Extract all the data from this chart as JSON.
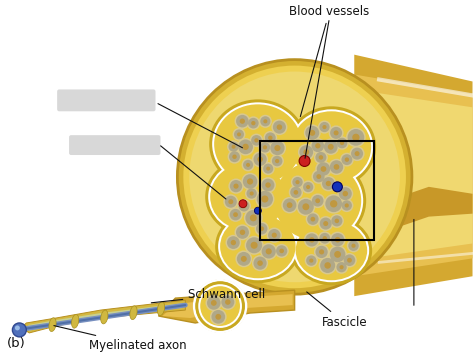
{
  "background_color": "#ffffff",
  "nerve_outer_color": "#D4A830",
  "nerve_tube_color": "#E8C050",
  "nerve_inner_color": "#F0D870",
  "fascicle_fill": "#E8C840",
  "fascicle_edge": "#C8A020",
  "connective_color": "#EED870",
  "myelin_color": "#E8D8A8",
  "axon_center_color": "#C09840",
  "axon_gray": "#B0A888",
  "blood_vessel_red": "#CC2020",
  "blood_vessel_blue": "#1030BB",
  "schwann_outer": "#D4B840",
  "schwann_inner": "#C8D898",
  "axon_blue": "#5070BB",
  "label_color": "#111111",
  "labels": {
    "blood_vessels": "Blood vessels",
    "schwann_cell": "Schwann cell",
    "myelinated_axon": "Myelinated axon",
    "fascicle": "Fascicle",
    "b_label": "(b)"
  },
  "label_fontsize": 8.5,
  "fig_width": 4.74,
  "fig_height": 3.55,
  "dpi": 100
}
